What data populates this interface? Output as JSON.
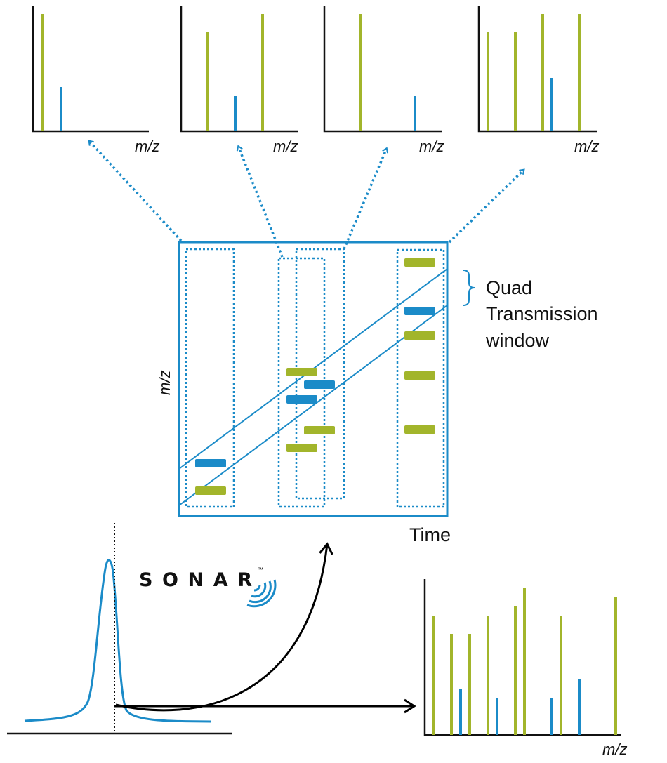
{
  "colors": {
    "green": "#a2b52b",
    "blue": "#1b8bc8",
    "axis": "#111111"
  },
  "top_spectra_axis_label": [
    "m/z",
    "m/z",
    "m/z",
    "m/z"
  ],
  "main_plot": {
    "y_label": "m/z",
    "x_label": "Time"
  },
  "quad_window_label": [
    "Quad",
    "Transmission",
    "window"
  ],
  "logo": {
    "text": "SONAR",
    "trademark": "™"
  },
  "combined_spectrum_axis_label": "m/z"
}
